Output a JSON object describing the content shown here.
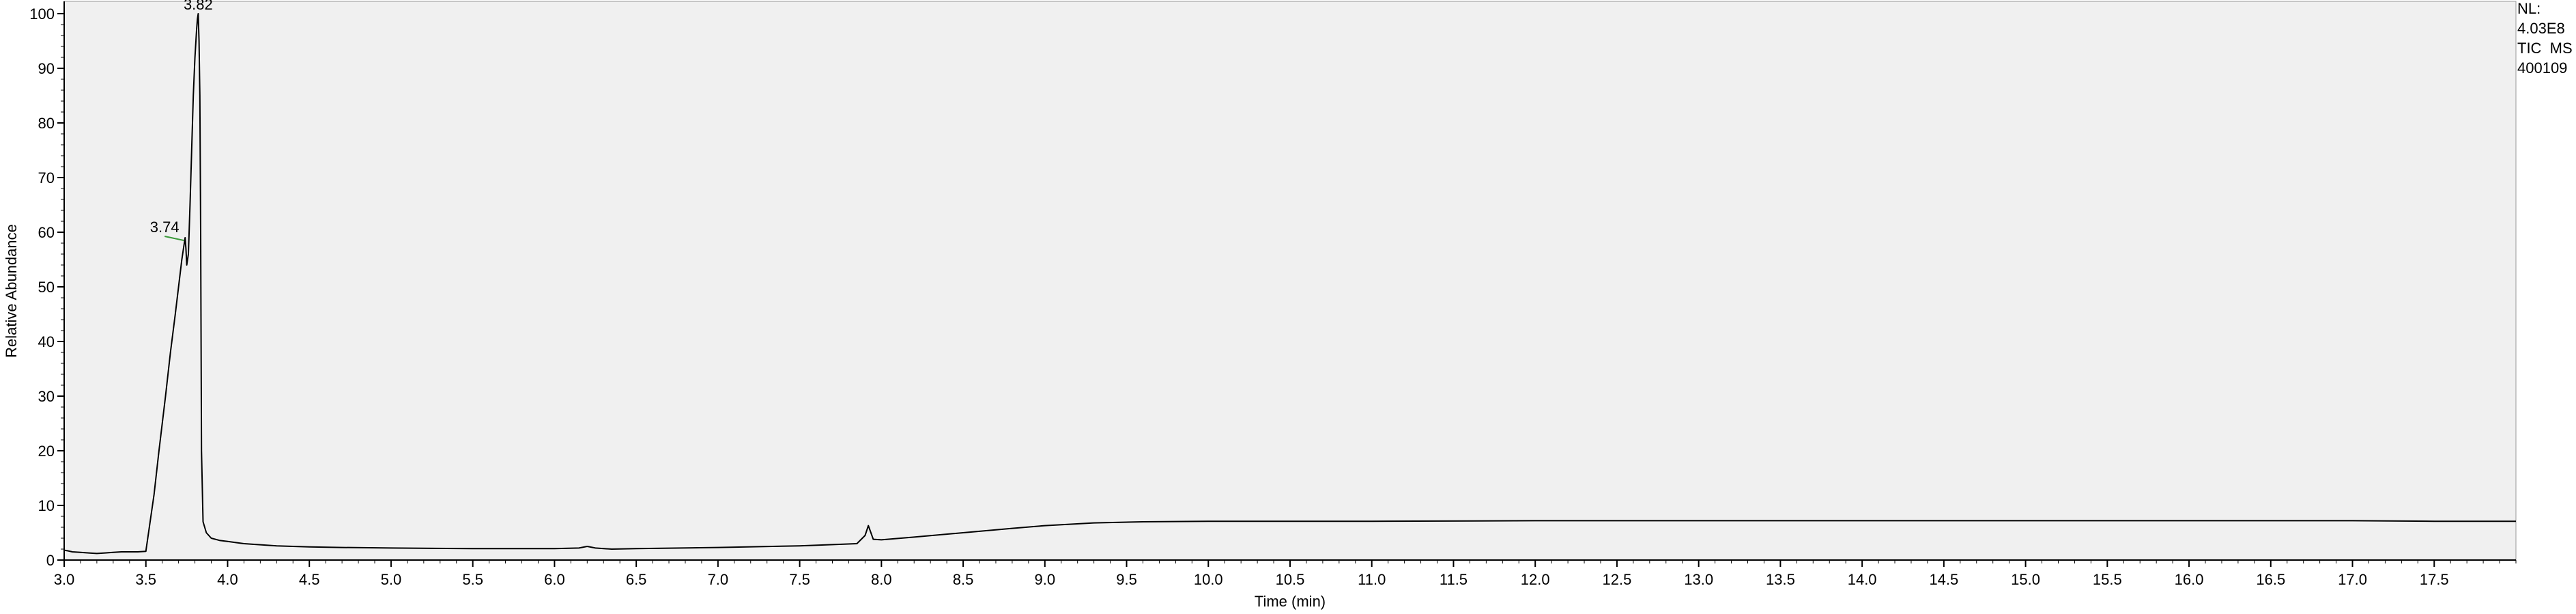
{
  "chart_data": {
    "type": "line",
    "title": "",
    "xlabel": "Time (min)",
    "ylabel": "Relative Abundance",
    "xlim": [
      3.0,
      18.0
    ],
    "ylim": [
      0,
      100
    ],
    "x_ticks": [
      "3.0",
      "3.5",
      "4.0",
      "4.5",
      "5.0",
      "5.5",
      "6.0",
      "6.5",
      "7.0",
      "7.5",
      "8.0",
      "8.5",
      "9.0",
      "9.5",
      "10.0",
      "10.5",
      "11.0",
      "11.5",
      "12.0",
      "12.5",
      "13.0",
      "13.5",
      "14.0",
      "14.5",
      "15.0",
      "15.5",
      "16.0",
      "16.5",
      "17.0",
      "17.5"
    ],
    "y_ticks": [
      "0",
      "10",
      "20",
      "30",
      "40",
      "50",
      "60",
      "70",
      "80",
      "90",
      "100"
    ],
    "grid": false,
    "info_box": [
      "NL:",
      "4.03E8",
      "TIC  MS",
      "400109"
    ],
    "peak_annotations": [
      {
        "x": 3.82,
        "y": 100,
        "label": "3.82"
      },
      {
        "x": 3.74,
        "y": 59,
        "label": "3.74"
      }
    ],
    "series": [
      {
        "x": [
          3.0,
          3.02,
          3.05,
          3.1,
          3.15,
          3.2,
          3.25,
          3.3,
          3.35,
          3.4,
          3.45,
          3.5,
          3.55,
          3.58,
          3.6,
          3.62,
          3.65,
          3.68,
          3.7,
          3.72,
          3.73,
          3.74,
          3.745,
          3.75,
          3.76,
          3.77,
          3.78,
          3.79,
          3.8,
          3.81,
          3.815,
          3.82,
          3.825,
          3.83,
          3.835,
          3.84,
          3.85,
          3.87,
          3.9,
          3.95,
          4.0,
          4.1,
          4.2,
          4.3,
          4.5,
          4.7,
          5.0,
          5.5,
          6.0,
          6.15,
          6.2,
          6.25,
          6.35,
          6.5,
          7.0,
          7.5,
          7.85,
          7.9,
          7.92,
          7.95,
          8.0,
          8.2,
          8.5,
          8.8,
          9.0,
          9.3,
          9.6,
          10.0,
          10.5,
          11.0,
          12.0,
          13.0,
          14.0,
          15.0,
          16.0,
          17.0,
          17.5,
          18.0
        ],
        "y": [
          1.8,
          1.7,
          1.5,
          1.4,
          1.3,
          1.2,
          1.3,
          1.4,
          1.5,
          1.5,
          1.5,
          1.6,
          12,
          20,
          25,
          30,
          38,
          45,
          50,
          55,
          57,
          59,
          57,
          54,
          56,
          65,
          75,
          85,
          92,
          97,
          99,
          100,
          95,
          85,
          60,
          20,
          7,
          5,
          4,
          3.6,
          3.4,
          3.0,
          2.8,
          2.6,
          2.4,
          2.3,
          2.2,
          2.1,
          2.1,
          2.2,
          2.5,
          2.2,
          2.0,
          2.1,
          2.3,
          2.6,
          3.0,
          4.5,
          6.3,
          3.8,
          3.7,
          4.2,
          5.0,
          5.8,
          6.3,
          6.8,
          7.0,
          7.1,
          7.1,
          7.1,
          7.2,
          7.2,
          7.2,
          7.2,
          7.2,
          7.2,
          7.1,
          7.1
        ]
      }
    ]
  }
}
